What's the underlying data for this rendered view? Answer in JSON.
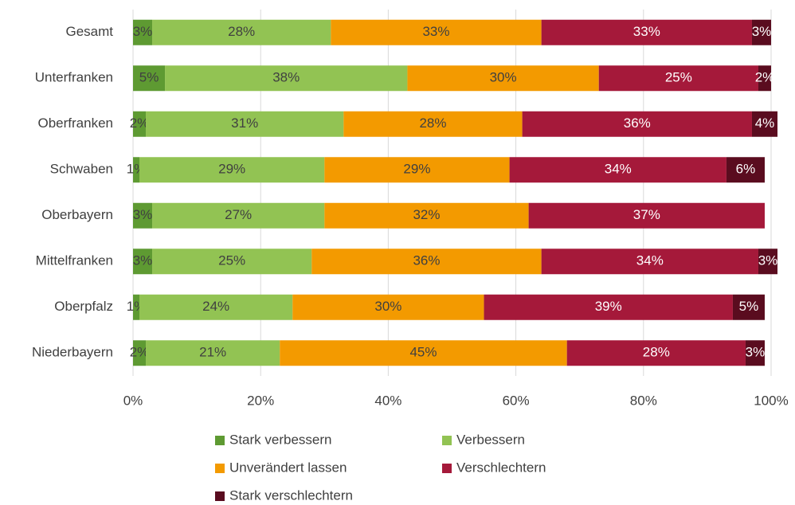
{
  "chart_data": {
    "type": "bar_stacked_horizontal",
    "categories": [
      "Gesamt",
      "Unterfranken",
      "Oberfranken",
      "Schwaben",
      "Oberbayern",
      "Mittelfranken",
      "Oberpfalz",
      "Niederbayern"
    ],
    "series": [
      {
        "name": "Stark verbessern",
        "color": "#5e9a32",
        "label_color": "#404040",
        "values": [
          3,
          5,
          2,
          1,
          3,
          3,
          1,
          2
        ],
        "value_labels": [
          "3%",
          "5%",
          "2%",
          "1%",
          "3%",
          "3%",
          "1%",
          "2%"
        ]
      },
      {
        "name": "Verbessern",
        "color": "#92c353",
        "label_color": "#404040",
        "values": [
          28,
          38,
          31,
          29,
          27,
          25,
          24,
          21
        ],
        "value_labels": [
          "28%",
          "38%",
          "31%",
          "29%",
          "27%",
          "25%",
          "24%",
          "21%"
        ]
      },
      {
        "name": "Unverändert lassen",
        "color": "#f39a00",
        "label_color": "#404040",
        "values": [
          33,
          30,
          28,
          29,
          32,
          36,
          30,
          45
        ],
        "value_labels": [
          "33%",
          "30%",
          "28%",
          "29%",
          "32%",
          "36%",
          "30%",
          "45%"
        ]
      },
      {
        "name": "Verschlechtern",
        "color": "#a5193a",
        "label_color": "#ffffff",
        "values": [
          33,
          25,
          36,
          34,
          37,
          34,
          39,
          28
        ],
        "value_labels": [
          "33%",
          "25%",
          "36%",
          "34%",
          "37%",
          "34%",
          "39%",
          "28%"
        ]
      },
      {
        "name": "Stark verschlechtern",
        "color": "#5a0c1f",
        "label_color": "#ffffff",
        "values": [
          3,
          2,
          4,
          6,
          null,
          3,
          5,
          3
        ],
        "value_labels": [
          "3%",
          "2%",
          "4%",
          "6%",
          null,
          "3%",
          "5%",
          "3%"
        ]
      }
    ],
    "xlim": [
      0,
      100
    ],
    "xticks": [
      {
        "value": 0,
        "label": "0%"
      },
      {
        "value": 20,
        "label": "20%"
      },
      {
        "value": 40,
        "label": "40%"
      },
      {
        "value": 60,
        "label": "60%"
      },
      {
        "value": 80,
        "label": "80%"
      },
      {
        "value": 100,
        "label": "100%"
      }
    ],
    "grid": true,
    "legend": "bottom"
  }
}
